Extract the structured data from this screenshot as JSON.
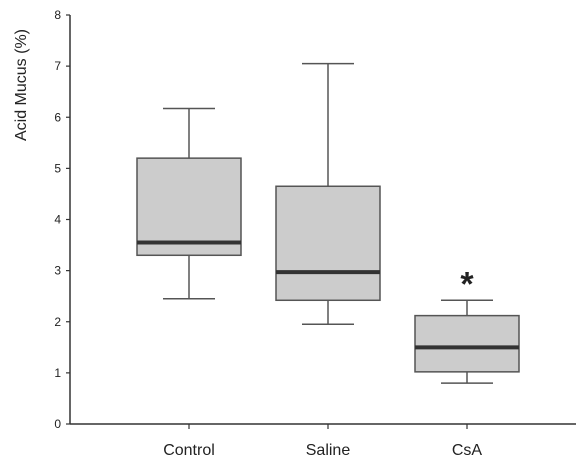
{
  "chart_data": {
    "type": "box",
    "ylabel": "Acid Mucus (%)",
    "ylim": [
      0,
      8
    ],
    "yticks": [
      0,
      1,
      2,
      3,
      4,
      5,
      6,
      7,
      8
    ],
    "ytick_labels": [
      "0",
      "1",
      "2",
      "3",
      "4",
      "5",
      "6",
      "7",
      "8"
    ],
    "categories": [
      "Control",
      "Saline",
      "CsA"
    ],
    "boxes": [
      {
        "whisker_low": 2.45,
        "q1": 3.3,
        "median": 3.55,
        "q3": 5.2,
        "whisker_high": 6.17
      },
      {
        "whisker_low": 1.95,
        "q1": 2.42,
        "median": 2.97,
        "q3": 4.65,
        "whisker_high": 7.05
      },
      {
        "whisker_low": 0.8,
        "q1": 1.02,
        "median": 1.5,
        "q3": 2.12,
        "whisker_high": 2.42
      }
    ],
    "annotations": [
      {
        "category": "CsA",
        "text": "*"
      }
    ],
    "colors": {
      "box_fill": "#cccccc",
      "box_stroke": "#555555",
      "median": "#333333",
      "axis": "#333333"
    },
    "grid": false
  }
}
